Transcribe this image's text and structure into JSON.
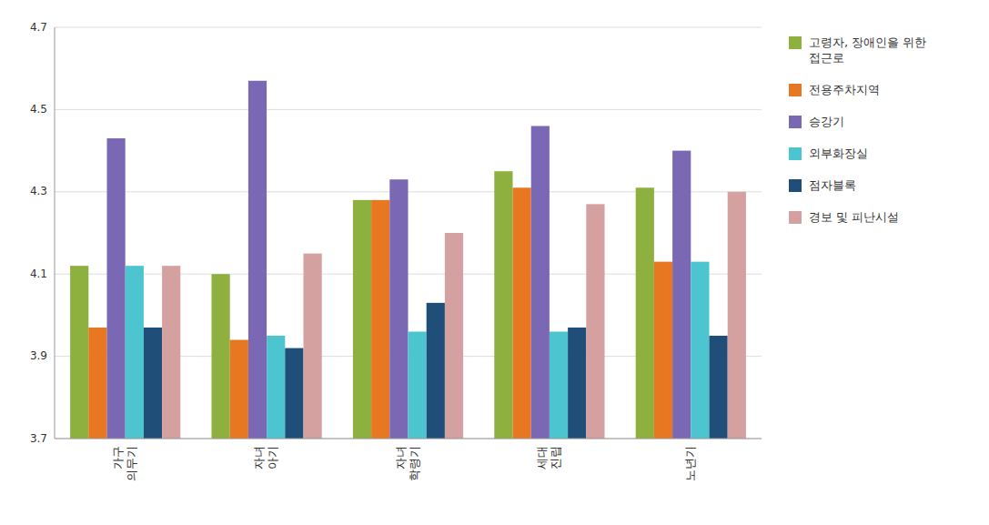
{
  "chart_data": {
    "type": "bar",
    "categories": [
      "가구\n의무기",
      "자녀\n아기",
      "자녀\n학령기",
      "세대\n진립",
      "노년기"
    ],
    "series": [
      {
        "name": "고령자, 장애인을 위한\n접근로",
        "color": "#8DB03E",
        "values": [
          4.12,
          4.1,
          4.28,
          4.35,
          4.31
        ]
      },
      {
        "name": "전용주차지역",
        "color": "#E87722",
        "values": [
          3.97,
          3.94,
          4.28,
          4.31,
          4.13
        ]
      },
      {
        "name": "승강기",
        "color": "#7B68B5",
        "values": [
          4.43,
          4.57,
          4.33,
          4.46,
          4.4
        ]
      },
      {
        "name": "외부화장실",
        "color": "#4CC5D0",
        "values": [
          4.12,
          3.95,
          3.96,
          3.96,
          4.13
        ]
      },
      {
        "name": "점자블록",
        "color": "#1F4E79",
        "values": [
          3.97,
          3.92,
          4.03,
          3.97,
          3.95
        ]
      },
      {
        "name": "경보 및 피난시설",
        "color": "#D4A0A0",
        "values": [
          4.12,
          4.15,
          4.2,
          4.27,
          4.3
        ]
      }
    ],
    "ylim": [
      3.7,
      4.7
    ],
    "yticks": [
      3.7,
      3.9,
      4.1,
      4.3,
      4.5,
      4.7
    ],
    "grid": true,
    "legend": "right"
  }
}
